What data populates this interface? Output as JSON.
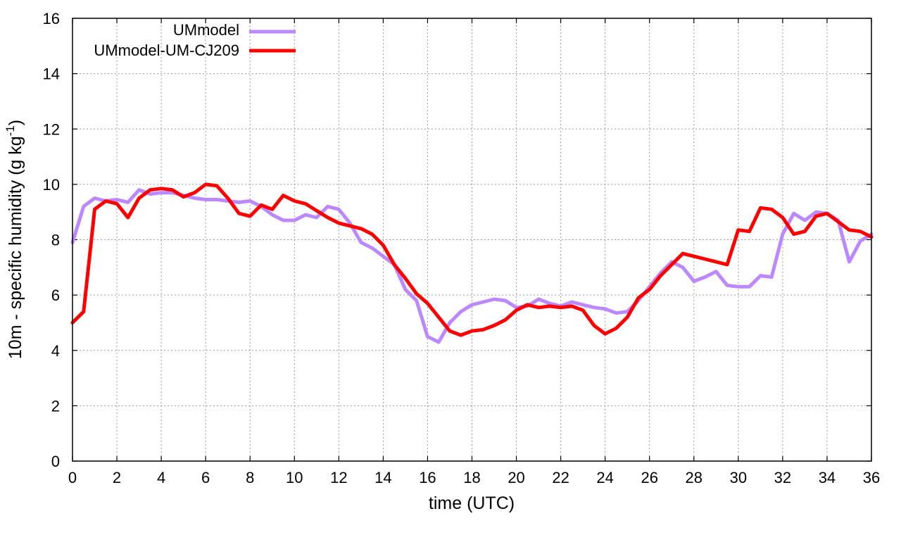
{
  "chart_data": {
    "type": "line",
    "xlabel": "time (UTC)",
    "ylabel": "10m - specific humidity (g kg",
    "ylabel_sup": "-1",
    "ylabel_close": ")",
    "xlim": [
      0,
      36
    ],
    "ylim": [
      0,
      16
    ],
    "xticks": [
      0,
      2,
      4,
      6,
      8,
      10,
      12,
      14,
      16,
      18,
      20,
      22,
      24,
      26,
      28,
      30,
      32,
      34,
      36
    ],
    "yticks": [
      0,
      2,
      4,
      6,
      8,
      10,
      12,
      14,
      16
    ],
    "grid": true,
    "legend_position": "top-left",
    "x": [
      0,
      0.5,
      1,
      1.5,
      2,
      2.5,
      3,
      3.5,
      4,
      4.5,
      5,
      5.5,
      6,
      6.5,
      7,
      7.5,
      8,
      8.5,
      9,
      9.5,
      10,
      10.5,
      11,
      11.5,
      12,
      12.5,
      13,
      13.5,
      14,
      14.5,
      15,
      15.5,
      16,
      16.5,
      17,
      17.5,
      18,
      18.5,
      19,
      19.5,
      20,
      20.5,
      21,
      21.5,
      22,
      22.5,
      23,
      23.5,
      24,
      24.5,
      25,
      25.5,
      26,
      26.5,
      27,
      27.5,
      28,
      28.5,
      29,
      29.5,
      30,
      30.5,
      31,
      31.5,
      32,
      32.5,
      33,
      33.5,
      34,
      34.5,
      35,
      35.5,
      36
    ],
    "series": [
      {
        "name": "UMmodel",
        "color": "#bb88ff",
        "values": [
          7.9,
          9.2,
          9.5,
          9.4,
          9.45,
          9.35,
          9.8,
          9.65,
          9.7,
          9.7,
          9.6,
          9.5,
          9.45,
          9.45,
          9.4,
          9.35,
          9.4,
          9.2,
          8.9,
          8.7,
          8.7,
          8.9,
          8.8,
          9.2,
          9.1,
          8.6,
          7.9,
          7.7,
          7.4,
          7.1,
          6.2,
          5.8,
          4.5,
          4.3,
          5.0,
          5.4,
          5.65,
          5.75,
          5.85,
          5.8,
          5.55,
          5.6,
          5.85,
          5.7,
          5.6,
          5.75,
          5.65,
          5.55,
          5.5,
          5.35,
          5.4,
          5.8,
          6.3,
          6.8,
          7.2,
          7.0,
          6.5,
          6.65,
          6.85,
          6.35,
          6.3,
          6.3,
          6.7,
          6.65,
          8.2,
          8.95,
          8.7,
          9.0,
          8.95,
          8.7,
          7.2,
          7.95,
          8.2
        ]
      },
      {
        "name": "UMmodel-UM-CJ209",
        "color": "#ff0000",
        "values": [
          5.0,
          5.4,
          9.1,
          9.4,
          9.3,
          8.8,
          9.5,
          9.8,
          9.85,
          9.8,
          9.55,
          9.7,
          10.0,
          9.95,
          9.5,
          8.95,
          8.85,
          9.25,
          9.1,
          9.6,
          9.4,
          9.3,
          9.05,
          8.8,
          8.6,
          8.5,
          8.4,
          8.2,
          7.8,
          7.1,
          6.6,
          6.05,
          5.7,
          5.2,
          4.7,
          4.55,
          4.7,
          4.75,
          4.9,
          5.1,
          5.45,
          5.65,
          5.55,
          5.6,
          5.55,
          5.6,
          5.45,
          4.9,
          4.6,
          4.8,
          5.2,
          5.9,
          6.2,
          6.7,
          7.1,
          7.5,
          7.4,
          7.3,
          7.2,
          7.1,
          8.35,
          8.3,
          9.15,
          9.1,
          8.8,
          8.2,
          8.3,
          8.85,
          8.95,
          8.65,
          8.35,
          8.3,
          8.1
        ]
      }
    ]
  }
}
